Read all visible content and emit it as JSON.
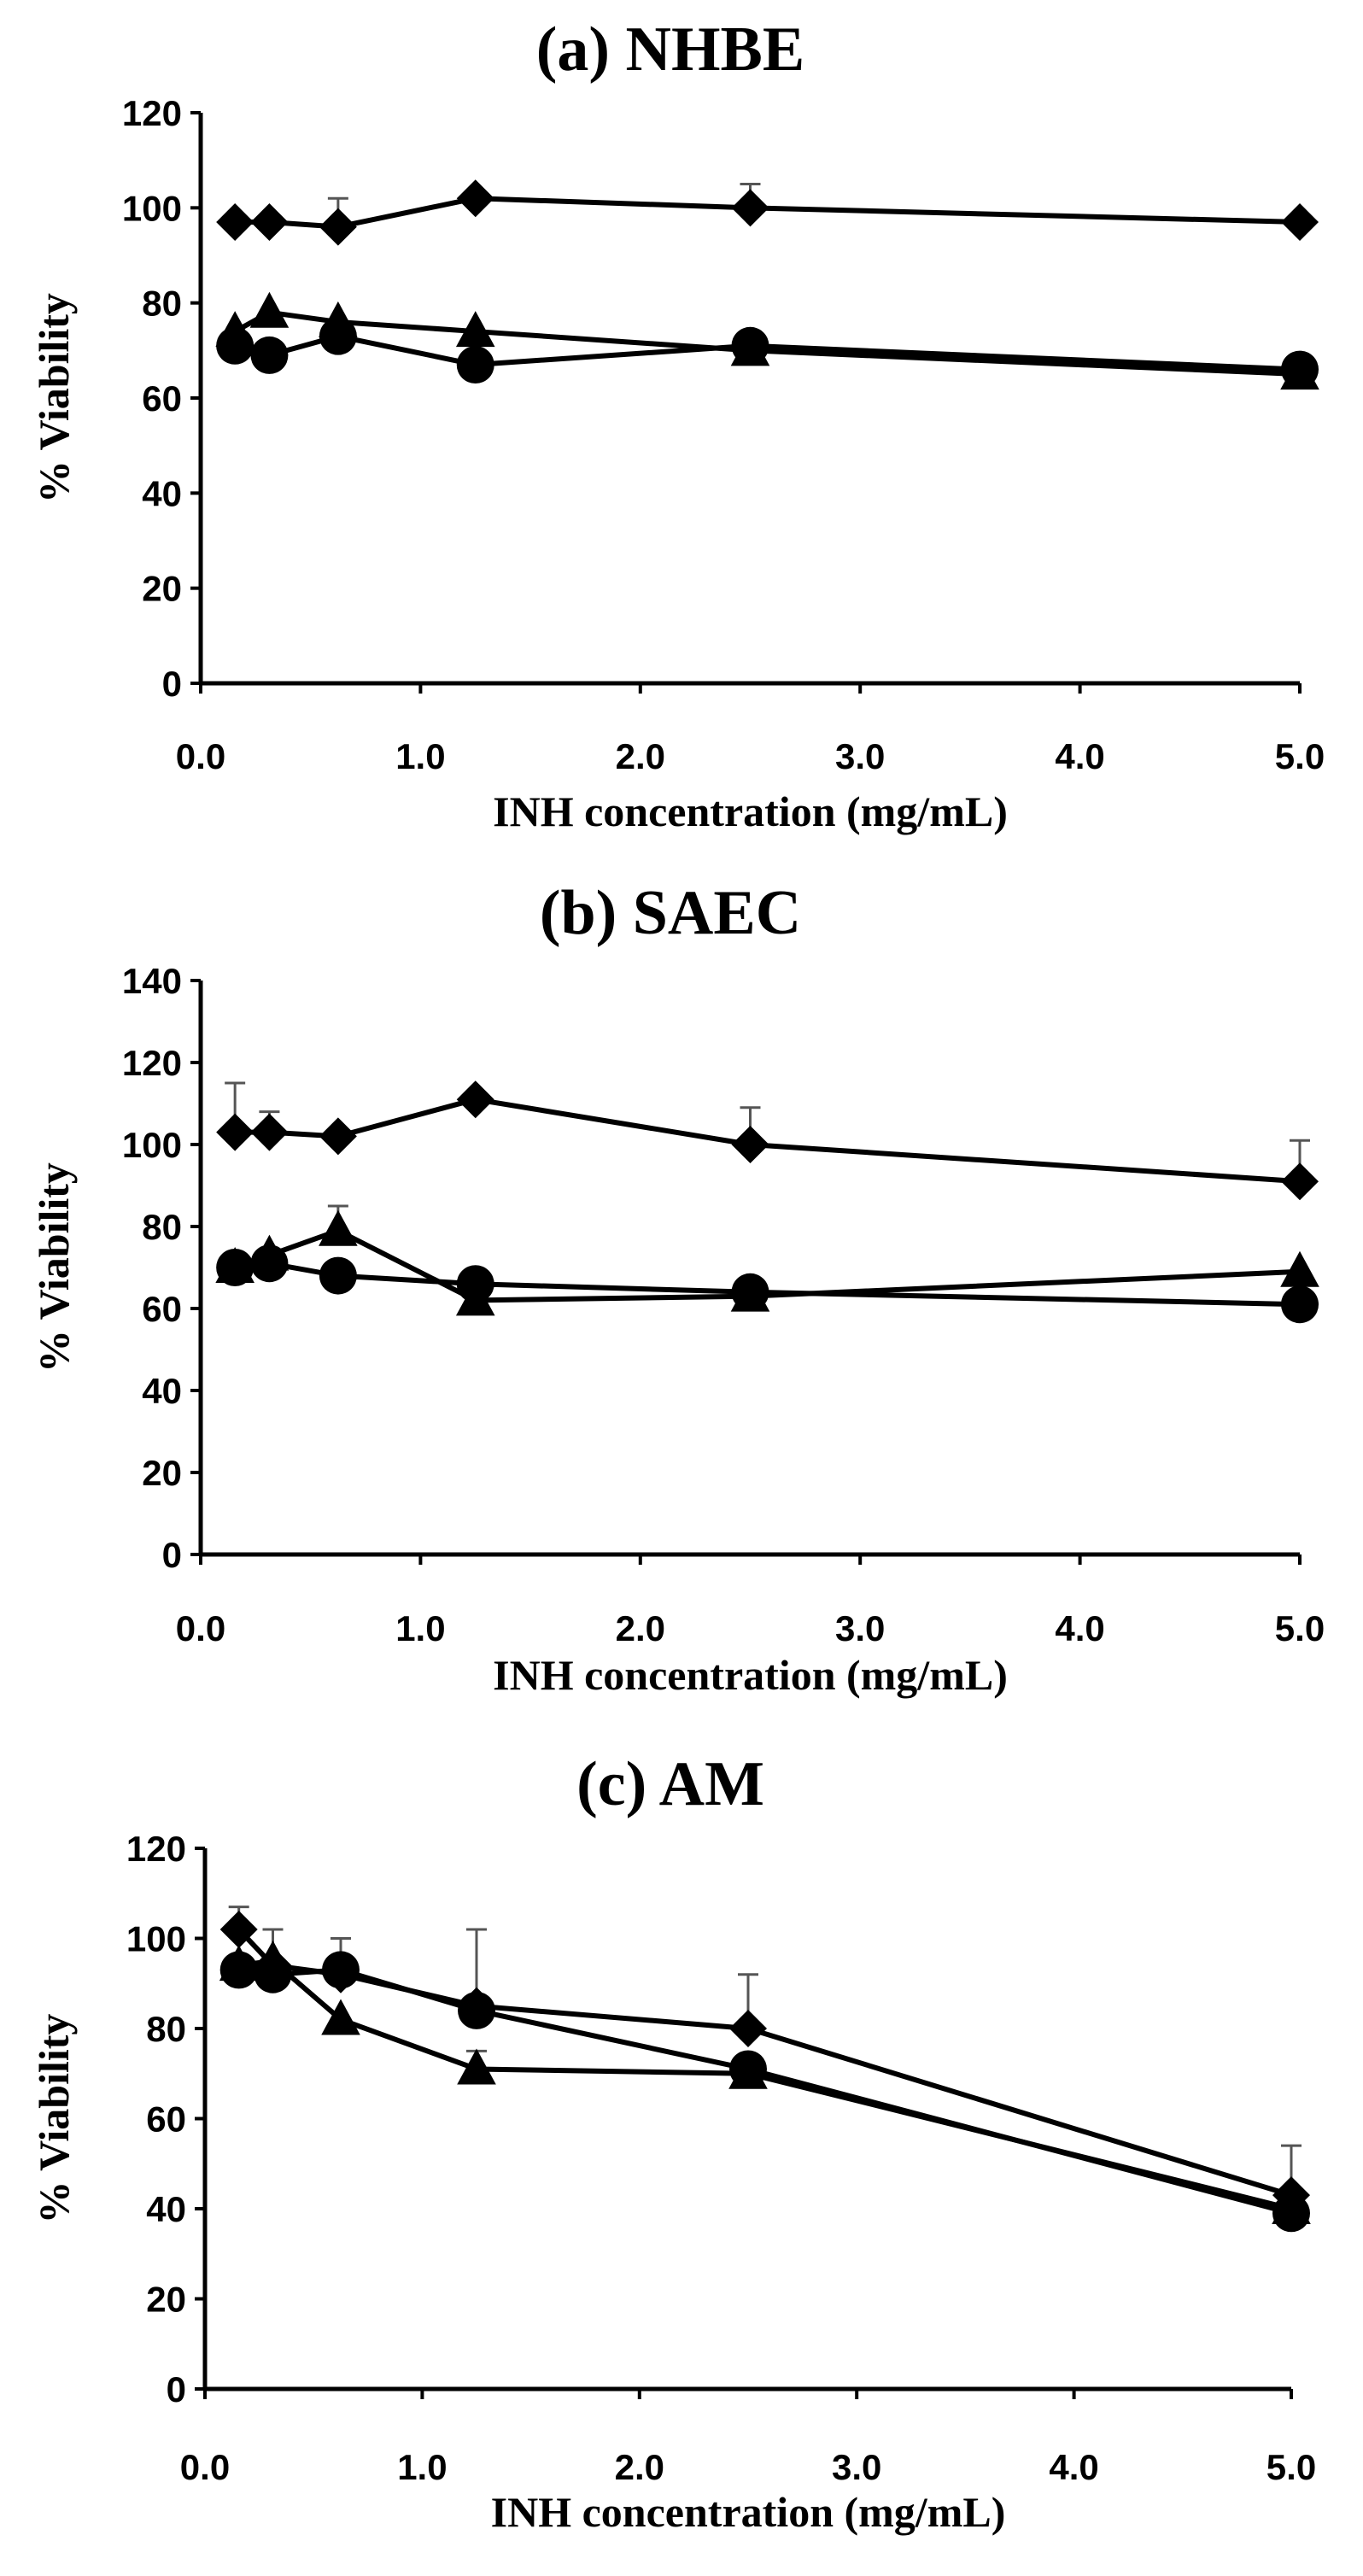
{
  "chart_data": [
    {
      "type": "line",
      "title": "(a) NHBE",
      "xlabel": "INH concentration (mg/mL)",
      "ylabel": "% Viability",
      "xlim": [
        0,
        5
      ],
      "ylim": [
        0,
        120
      ],
      "x_ticks": [
        "0.0",
        "1.0",
        "2.0",
        "3.0",
        "4.0",
        "5.0"
      ],
      "y_ticks": [
        "0",
        "20",
        "40",
        "60",
        "80",
        "100",
        "120"
      ],
      "x": [
        0.156,
        0.3125,
        0.625,
        1.25,
        2.5,
        5.0
      ],
      "series": [
        {
          "name": "diamond",
          "marker": "diamond",
          "values": [
            97,
            97,
            96,
            102,
            100,
            97
          ],
          "errors": [
            0,
            0,
            6,
            0,
            5,
            0
          ]
        },
        {
          "name": "triangle",
          "marker": "triangle",
          "values": [
            74,
            78,
            76,
            74,
            70,
            65
          ],
          "errors": [
            0,
            0,
            0,
            0,
            0,
            0
          ]
        },
        {
          "name": "circle",
          "marker": "circle",
          "values": [
            71,
            69,
            73,
            67,
            71,
            66
          ],
          "errors": [
            0,
            0,
            0,
            0,
            0,
            0
          ]
        }
      ]
    },
    {
      "type": "line",
      "title": "(b) SAEC",
      "xlabel": "INH concentration (mg/mL)",
      "ylabel": "% Viability",
      "xlim": [
        0,
        5
      ],
      "ylim": [
        0,
        140
      ],
      "x_ticks": [
        "0.0",
        "1.0",
        "2.0",
        "3.0",
        "4.0",
        "5.0"
      ],
      "y_ticks": [
        "0",
        "20",
        "40",
        "60",
        "80",
        "100",
        "120",
        "140"
      ],
      "x": [
        0.156,
        0.3125,
        0.625,
        1.25,
        2.5,
        5.0
      ],
      "series": [
        {
          "name": "diamond",
          "marker": "diamond",
          "values": [
            103,
            103,
            102,
            111,
            100,
            91
          ],
          "errors": [
            12,
            5,
            0,
            0,
            9,
            10
          ]
        },
        {
          "name": "triangle",
          "marker": "triangle",
          "values": [
            70,
            73,
            79,
            62,
            63,
            69
          ],
          "errors": [
            0,
            0,
            6,
            0,
            0,
            0
          ]
        },
        {
          "name": "circle",
          "marker": "circle",
          "values": [
            70,
            71,
            68,
            66,
            64,
            61
          ],
          "errors": [
            0,
            0,
            0,
            0,
            0,
            0
          ]
        }
      ]
    },
    {
      "type": "line",
      "title": "(c) AM",
      "xlabel": "INH concentration (mg/mL)",
      "ylabel": "% Viability",
      "xlim": [
        0,
        5
      ],
      "ylim": [
        0,
        120
      ],
      "x_ticks": [
        "0.0",
        "1.0",
        "2.0",
        "3.0",
        "4.0",
        "5.0"
      ],
      "y_ticks": [
        "0",
        "20",
        "40",
        "60",
        "80",
        "100",
        "120"
      ],
      "x": [
        0.156,
        0.3125,
        0.625,
        1.25,
        2.5,
        5.0
      ],
      "series": [
        {
          "name": "diamond",
          "marker": "diamond",
          "values": [
            102,
            94,
            92,
            85,
            80,
            43
          ],
          "errors": [
            5,
            8,
            8,
            17,
            12,
            11
          ]
        },
        {
          "name": "triangle",
          "marker": "triangle",
          "values": [
            94,
            95,
            82,
            71,
            70,
            40
          ],
          "errors": [
            0,
            0,
            0,
            4,
            0,
            0
          ]
        },
        {
          "name": "circle",
          "marker": "circle",
          "values": [
            93,
            92,
            93,
            84,
            71,
            39
          ],
          "errors": [
            0,
            0,
            0,
            0,
            0,
            0
          ]
        }
      ]
    }
  ]
}
